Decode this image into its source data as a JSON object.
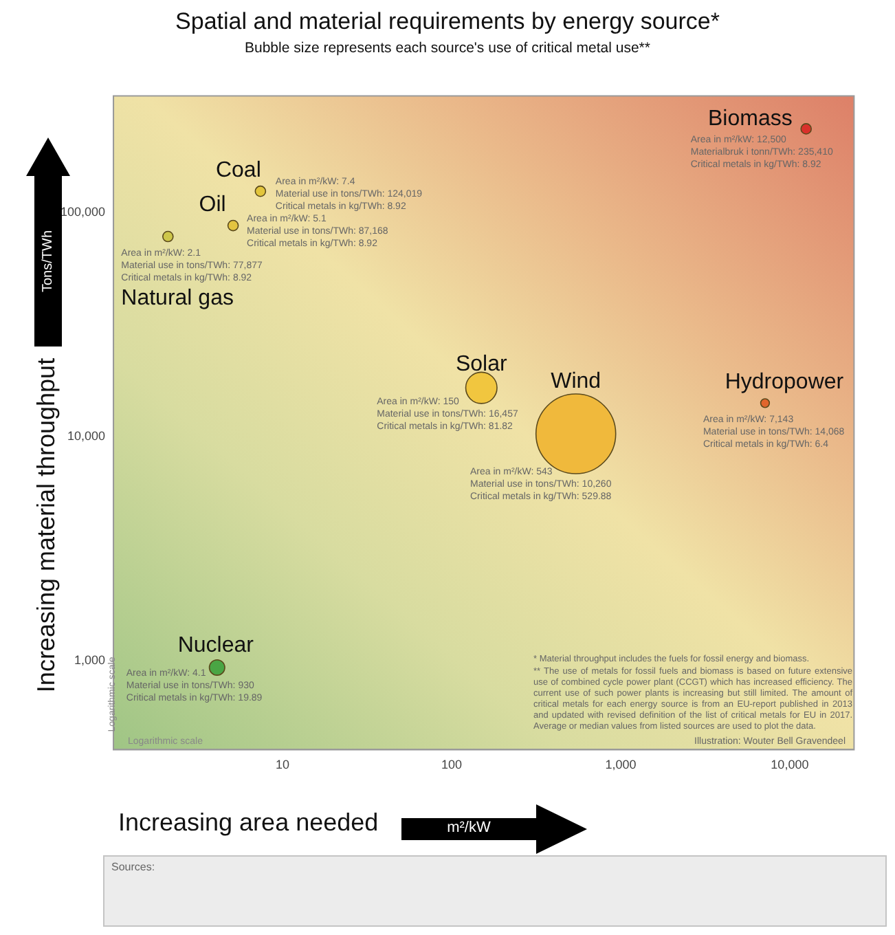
{
  "chart_data": {
    "type": "bubble",
    "title": "Spatial and material requirements by energy source*",
    "subtitle": "Bubble size represents each source's use of critical metal use**",
    "xlabel": "Increasing area needed",
    "ylabel": "Increasing material throughput",
    "log": "xy",
    "xlim": [
      1,
      24000
    ],
    "xticks": [
      10,
      100,
      {
        "value": 1000,
        "label": "1,000"
      },
      {
        "value": 10000,
        "label": "10,000"
      }
    ],
    "ylim": [
      400,
      330000
    ],
    "yticks": [
      {
        "value": 1000,
        "label": "1,000"
      },
      {
        "value": 10000,
        "label": "10,000"
      },
      {
        "value": 100000,
        "label": "100,000"
      }
    ],
    "grid": false,
    "series": [
      {
        "name": "Coal",
        "color": "#e2c53c",
        "x": [
          7.4
        ],
        "values": [
          124019
        ],
        "sizes": [
          0.0168
        ]
      },
      {
        "name": "Oil",
        "color": "#e3c440",
        "x": [
          5.1
        ],
        "values": [
          87168
        ],
        "sizes": [
          0.0168
        ]
      },
      {
        "name": "Natural gas",
        "color": "#cdc64a",
        "x": [
          2.1
        ],
        "values": [
          77877
        ],
        "sizes": [
          0.0168
        ]
      },
      {
        "name": "Biomass",
        "color": "#d9312b",
        "x": [
          12500
        ],
        "values": [
          235410
        ],
        "sizes": [
          0.0168
        ]
      },
      {
        "name": "Solar",
        "color": "#f1c63f",
        "x": [
          150
        ],
        "values": [
          16457
        ],
        "sizes": [
          0.154
        ]
      },
      {
        "name": "Wind",
        "color": "#f0b93c",
        "x": [
          543
        ],
        "values": [
          10260
        ],
        "sizes": [
          1
        ]
      },
      {
        "name": "Hydropower",
        "color": "#e0662d",
        "x": [
          7143
        ],
        "values": [
          14068
        ],
        "sizes": [
          0.0121
        ]
      },
      {
        "name": "Nuclear",
        "color": "#4aa544",
        "x": [
          4.1
        ],
        "values": [
          930
        ],
        "sizes": [
          0.0375
        ]
      }
    ],
    "annotations": [
      {
        "text": "Area in m²/kW: 7.4\nMaterial use in tons/TWh: 124,019\nCritical metals in kg/TWh: 8.92",
        "x": 7.4,
        "y": 124019
      },
      {
        "text": "Area in m²/kW: 5.1\nMaterial use in tons/TWh: 87,168\nCritical metals in kg/TWh: 8.92",
        "x": 5.1,
        "y": 87168
      },
      {
        "text": "Area in m²/kW: 2.1\nMaterial use in tons/TWh: 77,877\nCritical metals in kg/TWh: 8.92",
        "x": 2.1,
        "y": 77877
      },
      {
        "text": "Area in m²/kW: 12,500\nMaterialbruk i tonn/TWh: 235,410\nCritical metals in kg/TWh: 8.92",
        "x": 12500,
        "y": 235410
      },
      {
        "text": "Area in m²/kW: 150\nMaterial use in tons/TWh: 16,457\nCritical metals in kg/TWh: 81.82",
        "x": 150,
        "y": 16457
      },
      {
        "text": "Area in m²/kW: 7,143\nMaterial use in tons/TWh: 14,068\nCritical metals in kg/TWh: 6.4",
        "x": 7143,
        "y": 14068
      },
      {
        "text": "Area in m²/kW: 4.1\nMaterial use in tons/TWh: 930\nCritical metals in kg/TWh: 19.89",
        "x": 4.1,
        "y": 930
      },
      "* Material throughput includes the fuels for fossil energy and biomass.",
      "** The use of metals for fossil fuels and biomass is based on future extensive use of combined cycle power plant (CCGT) which has increased efficiency. The current use of such power plants is increasing but still limited. The amount of critical metals for each energy source is from an EU-report published in 2013 and updated with revised definition of the list of critical metals for EU in 2017. Average or median values from listed sources are used to plot the data.",
      "Illustration: Wouter Bell Gravendeel",
      "Logarithmic scale",
      "Logarithmic scale",
      "m²/kW",
      "Tons/TWh",
      "Sources:",
      "Area in m²/kW: 543\nMaterial use in tons/TWh: 10,260\nCritical metals in kg/TWh: 529.88"
    ]
  }
}
